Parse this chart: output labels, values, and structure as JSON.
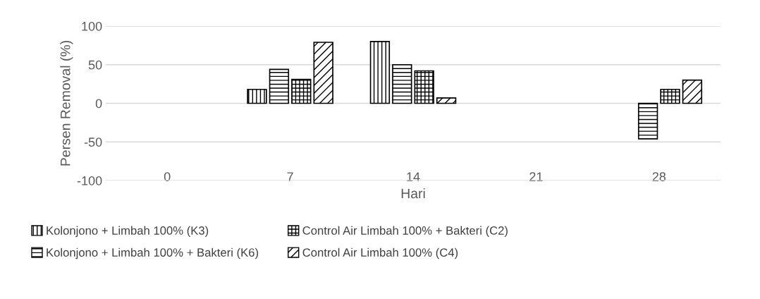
{
  "chart_data": {
    "type": "bar",
    "xlabel": "Hari",
    "ylabel": "Persen Removal (%)",
    "categories": [
      "0",
      "7",
      "14",
      "21",
      "28"
    ],
    "series": [
      {
        "name": "Kolonjono + Limbah 100% (K3)",
        "color": "#000000",
        "values": [
          null,
          18,
          80,
          null,
          null
        ]
      },
      {
        "name": "Kolonjono + Limbah 100% + Bakteri (K6)",
        "color": "#000000",
        "values": [
          null,
          44,
          50,
          null,
          -46
        ]
      },
      {
        "name": "Control Air Limbah 100% + Bakteri (C2)",
        "color": "#000000",
        "values": [
          null,
          31,
          42,
          null,
          18
        ]
      },
      {
        "name": "Control Air Limbah 100% (C4)",
        "color": "#000000",
        "values": [
          null,
          79,
          7,
          null,
          30
        ]
      }
    ],
    "ylim": [
      -100,
      100
    ],
    "yticks": [
      -100,
      -50,
      0,
      50,
      100
    ],
    "grid": "y",
    "legend": "bottom"
  }
}
